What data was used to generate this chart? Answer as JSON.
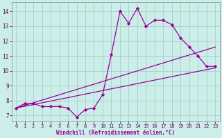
{
  "xlabel": "Windchill (Refroidissement éolien,°C)",
  "bg_color": "#cceee8",
  "grid_color": "#aacccc",
  "line_color": "#990099",
  "xlim": [
    -0.5,
    23.5
  ],
  "ylim": [
    6.6,
    14.6
  ],
  "xticks": [
    0,
    1,
    2,
    3,
    4,
    5,
    6,
    7,
    8,
    9,
    10,
    11,
    12,
    13,
    14,
    15,
    16,
    17,
    18,
    19,
    20,
    21,
    22,
    23
  ],
  "yticks": [
    7,
    8,
    9,
    10,
    11,
    12,
    13,
    14
  ],
  "line1_x": [
    0,
    1,
    2,
    3,
    4,
    5,
    6,
    7,
    8,
    9,
    10,
    11,
    12,
    13,
    14,
    15,
    16,
    17,
    18,
    19,
    20,
    21,
    22,
    23
  ],
  "line1_y": [
    7.5,
    7.8,
    7.8,
    7.6,
    7.6,
    7.6,
    7.5,
    6.9,
    7.4,
    7.5,
    8.4,
    11.1,
    14.0,
    13.2,
    14.2,
    13.0,
    13.4,
    13.4,
    13.1,
    12.2,
    11.6,
    11.0,
    10.3,
    10.3
  ],
  "line2_x": [
    0,
    23
  ],
  "line2_y": [
    7.5,
    11.6
  ],
  "line3_x": [
    0,
    23
  ],
  "line3_y": [
    7.5,
    10.2
  ],
  "marker": "D",
  "marker_size": 2.2,
  "tick_fontsize": 5.0,
  "xlabel_fontsize": 5.5
}
